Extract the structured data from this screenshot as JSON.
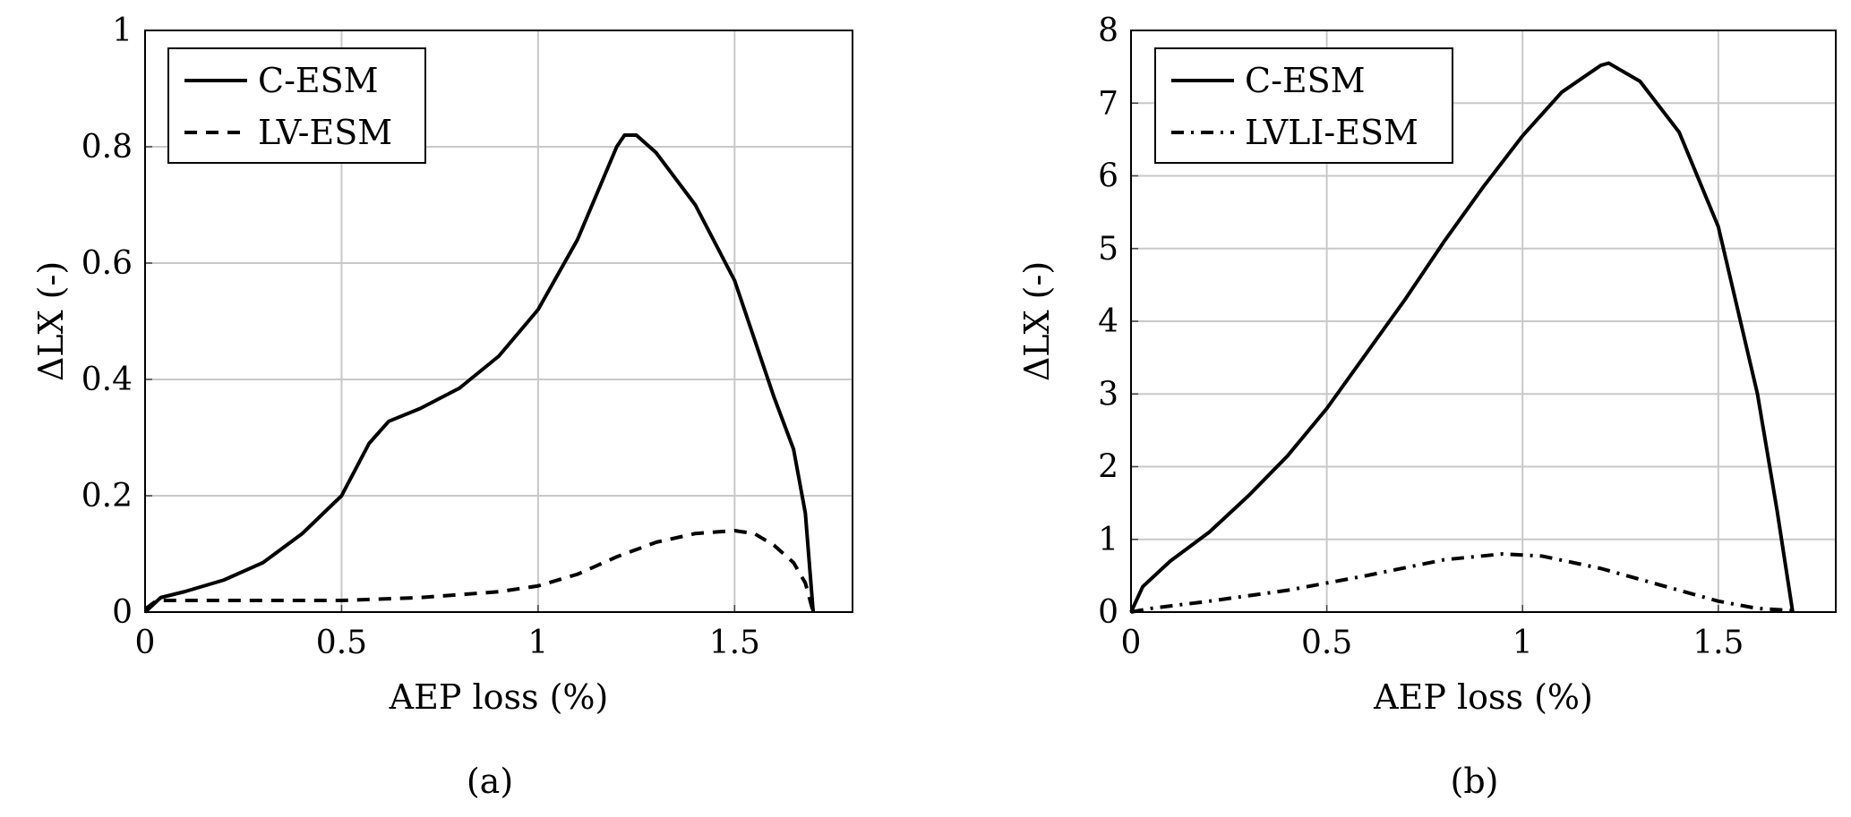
{
  "chart_data": [
    {
      "type": "line",
      "caption": "(a)",
      "xlabel": "AEP loss (%)",
      "ylabel": "ΔLX (-)",
      "xlim": [
        0,
        1.8
      ],
      "ylim": [
        0,
        1
      ],
      "xticks": [
        0,
        0.5,
        1,
        1.5
      ],
      "yticks": [
        0,
        0.2,
        0.4,
        0.6,
        0.8,
        1
      ],
      "xtick_labels": [
        "0",
        "0.5",
        "1",
        "1.5"
      ],
      "ytick_labels": [
        "0",
        "0.2",
        "0.4",
        "0.6",
        "0.8",
        "1"
      ],
      "grid": true,
      "legend_position": "top-left",
      "series": [
        {
          "name": "C-ESM",
          "style": "solid",
          "x": [
            0,
            0.04,
            0.1,
            0.2,
            0.3,
            0.4,
            0.5,
            0.57,
            0.62,
            0.7,
            0.8,
            0.9,
            1.0,
            1.1,
            1.2,
            1.22,
            1.25,
            1.3,
            1.4,
            1.5,
            1.6,
            1.65,
            1.68,
            1.7
          ],
          "y": [
            0,
            0.025,
            0.035,
            0.055,
            0.085,
            0.135,
            0.2,
            0.29,
            0.328,
            0.35,
            0.385,
            0.44,
            0.52,
            0.64,
            0.8,
            0.82,
            0.82,
            0.79,
            0.7,
            0.57,
            0.37,
            0.28,
            0.17,
            0
          ]
        },
        {
          "name": "LV-ESM",
          "style": "dashed",
          "x": [
            0,
            0.03,
            0.5,
            0.7,
            0.9,
            1.0,
            1.1,
            1.2,
            1.3,
            1.4,
            1.5,
            1.55,
            1.6,
            1.65,
            1.68,
            1.7
          ],
          "y": [
            0.005,
            0.02,
            0.02,
            0.025,
            0.035,
            0.045,
            0.065,
            0.095,
            0.12,
            0.135,
            0.14,
            0.135,
            0.115,
            0.085,
            0.05,
            0
          ]
        }
      ]
    },
    {
      "type": "line",
      "caption": "(b)",
      "xlabel": "AEP loss (%)",
      "ylabel": "ΔLX (-)",
      "xlim": [
        0,
        1.8
      ],
      "ylim": [
        0,
        8
      ],
      "xticks": [
        0,
        0.5,
        1,
        1.5
      ],
      "yticks": [
        0,
        1,
        2,
        3,
        4,
        5,
        6,
        7,
        8
      ],
      "xtick_labels": [
        "0",
        "0.5",
        "1",
        "1.5"
      ],
      "ytick_labels": [
        "0",
        "1",
        "2",
        "3",
        "4",
        "5",
        "6",
        "7",
        "8"
      ],
      "grid": true,
      "legend_position": "top-left",
      "series": [
        {
          "name": "C-ESM",
          "style": "solid",
          "x": [
            0,
            0.03,
            0.1,
            0.2,
            0.3,
            0.4,
            0.5,
            0.6,
            0.7,
            0.8,
            0.9,
            1.0,
            1.1,
            1.2,
            1.22,
            1.3,
            1.4,
            1.5,
            1.6,
            1.65,
            1.69
          ],
          "y": [
            0,
            0.35,
            0.7,
            1.1,
            1.6,
            2.15,
            2.8,
            3.55,
            4.3,
            5.1,
            5.85,
            6.55,
            7.15,
            7.52,
            7.55,
            7.3,
            6.6,
            5.3,
            3.0,
            1.4,
            0
          ]
        },
        {
          "name": "LVLI-ESM",
          "style": "dashdot",
          "x": [
            0,
            0.05,
            0.2,
            0.4,
            0.6,
            0.8,
            0.95,
            1.05,
            1.2,
            1.4,
            1.5,
            1.6,
            1.69
          ],
          "y": [
            0,
            0.05,
            0.15,
            0.3,
            0.5,
            0.72,
            0.8,
            0.77,
            0.6,
            0.3,
            0.15,
            0.05,
            0.02
          ]
        }
      ]
    }
  ]
}
